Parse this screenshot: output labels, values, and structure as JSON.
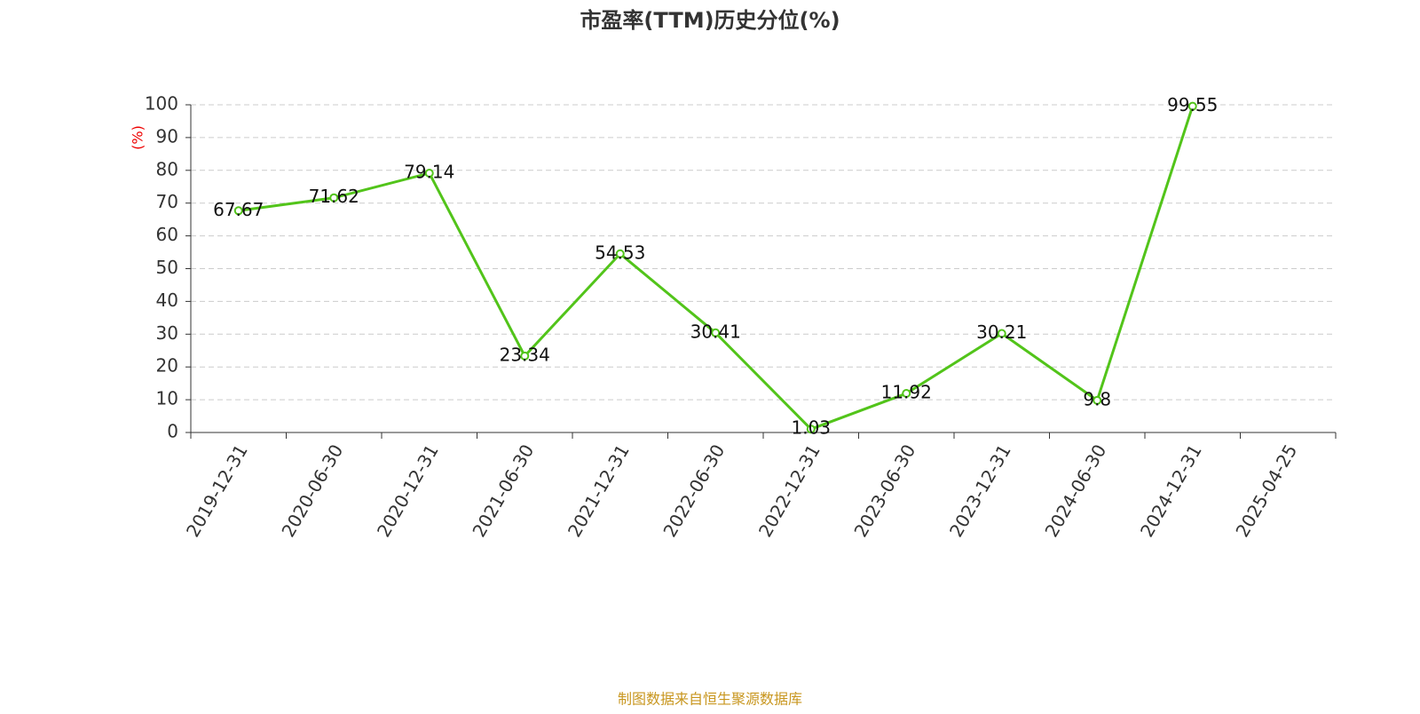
{
  "chart_data": {
    "type": "line",
    "title": "市盈率(TTM)历史分位(%)",
    "y_label": "(%)",
    "footer": "制图数据来自恒生聚源数据库",
    "categories": [
      "2019-12-31",
      "2020-06-30",
      "2020-12-31",
      "2021-06-30",
      "2021-12-31",
      "2022-06-30",
      "2022-12-31",
      "2023-06-30",
      "2023-12-31",
      "2024-06-30",
      "2024-12-31",
      "2025-04-25"
    ],
    "values": [
      67.67,
      71.62,
      79.14,
      23.34,
      54.53,
      30.41,
      1.03,
      11.92,
      30.21,
      9.8,
      99.55,
      null
    ],
    "color": "#52c41a",
    "ylim": [
      0,
      100
    ],
    "yticks": [
      0,
      10,
      20,
      30,
      40,
      50,
      60,
      70,
      80,
      90,
      100
    ],
    "grid": true
  }
}
